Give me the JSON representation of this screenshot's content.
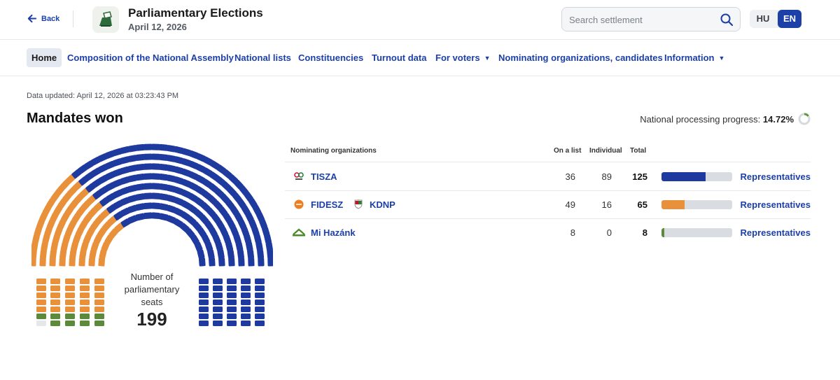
{
  "header": {
    "back_label": "Back",
    "title": "Parliamentary Elections",
    "date": "April 12, 2026",
    "search_placeholder": "Search settlement",
    "lang_hu": "HU",
    "lang_en": "EN",
    "accent": "#1c3fa8"
  },
  "nav": {
    "items": [
      {
        "label": "Home",
        "active": true
      },
      {
        "label": "Composition of the National Assembly"
      },
      {
        "label": "National lists"
      },
      {
        "label": "Constituencies"
      },
      {
        "label": "Turnout data"
      },
      {
        "label": "For voters",
        "dropdown": true
      },
      {
        "label": "Nominating organizations, candidates"
      },
      {
        "label": "Information",
        "dropdown": true
      }
    ],
    "caret": "▼"
  },
  "main": {
    "updated": "Data updated: April 12, 2026 at 03:23:43 PM",
    "mandates_title": "Mandates won",
    "progress_label": "National processing progress:",
    "progress_value": "14.72%",
    "progress_fraction": 0.1472
  },
  "parliament": {
    "label": "Number of parliamentary seats",
    "total": "199",
    "colors": {
      "TISZA": "#1f3a9e",
      "FIDESZ": "#e8903a",
      "KDNP": "#e8903a",
      "Mi Hazánk": "#5b8a3a",
      "empty": "#e5e7ea"
    }
  },
  "table": {
    "headers": {
      "org": "Nominating organizations",
      "list": "On a list",
      "individual": "Individual",
      "total": "Total"
    },
    "rows": [
      {
        "parties": [
          "TISZA"
        ],
        "icons": [
          "tisza-logo-icon"
        ],
        "on_list": "36",
        "individual": "89",
        "total": "125",
        "share": 0.628,
        "color": "#1f3a9e",
        "link": "Representatives"
      },
      {
        "parties": [
          "FIDESZ",
          "KDNP"
        ],
        "icons": [
          "fidesz-logo-icon",
          "kdnp-logo-icon"
        ],
        "on_list": "49",
        "individual": "16",
        "total": "65",
        "share": 0.327,
        "color": "#e8903a",
        "link": "Representatives"
      },
      {
        "parties": [
          "Mi Hazánk"
        ],
        "icons": [
          "mi-hazank-logo-icon"
        ],
        "on_list": "8",
        "individual": "0",
        "total": "8",
        "share": 0.04,
        "color": "#5b8a3a",
        "link": "Representatives"
      }
    ]
  }
}
